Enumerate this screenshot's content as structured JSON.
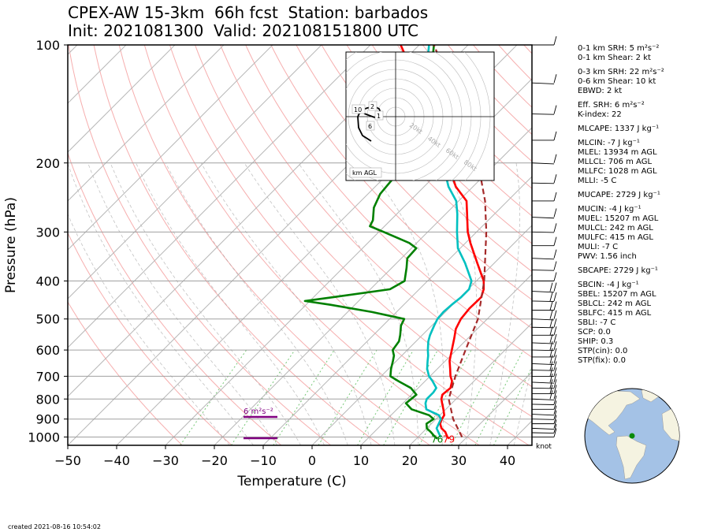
{
  "title": {
    "line1": "CPEX-AW 15-3km  66h fcst  Station: barbados",
    "line2": "Init: 2021081300  Valid: 202108151800 UTC"
  },
  "created": "created 2021-08-16 10:54:02",
  "stats": [
    "0-1 km SRH: 5 m²s⁻²",
    "0-1 km Shear: 2 kt",
    "0-3 km SRH: 22 m²s⁻²",
    "0-6 km Shear: 10 kt",
    "EBWD: 2 kt",
    "Eff. SRH: 6 m²s⁻²",
    "K-index: 22",
    "MLCAPE: 1337 J kg⁻¹",
    "MLCIN: -7 J kg⁻¹",
    "MLEL: 13934 m AGL",
    "MLLCL: 706 m AGL",
    "MLLFC: 1028 m AGL",
    "MLLI: -5 C",
    "MUCAPE: 2729 J kg⁻¹",
    "MUCIN: -4 J kg⁻¹",
    "MUEL: 15207 m AGL",
    "MULCL: 242 m AGL",
    "MULFC: 415 m AGL",
    "MULI: -7 C",
    "PWV: 1.56 inch",
    "SBCAPE: 2729 J kg⁻¹",
    "SBCIN: -4 J kg⁻¹",
    "SBEL: 15207 m AGL",
    "SBLCL: 242 m AGL",
    "SBLFC: 415 m AGL",
    "SBLI: -7 C",
    "SCP: 0.0",
    "SHIP: 0.3",
    "STP(cin): 0.0",
    "STP(fix): 0.0"
  ],
  "chart_data": {
    "type": "skew-t",
    "xlabel": "Temperature (C)",
    "ylabel": "Pressure (hPa)",
    "xlim": [
      -50,
      45
    ],
    "ylim": [
      1050,
      100
    ],
    "log_pressure_axis": true,
    "x_ticks": [
      "−50",
      "−40",
      "−30",
      "−20",
      "−10",
      "0",
      "10",
      "20",
      "30",
      "40"
    ],
    "y_ticks": [
      "100",
      "200",
      "300",
      "400",
      "500",
      "600",
      "700",
      "800",
      "900",
      "1000"
    ],
    "series": [
      {
        "name": "temperature",
        "color": "#ff0000",
        "points": [
          [
            1010,
            26.7
          ],
          [
            1000,
            26
          ],
          [
            970,
            24.5
          ],
          [
            950,
            23
          ],
          [
            925,
            21.8
          ],
          [
            900,
            21.2
          ],
          [
            880,
            20.9
          ],
          [
            850,
            19.5
          ],
          [
            820,
            18
          ],
          [
            800,
            17
          ],
          [
            780,
            16.3
          ],
          [
            750,
            16.6
          ],
          [
            720,
            15.5
          ],
          [
            700,
            14.2
          ],
          [
            670,
            12.6
          ],
          [
            640,
            10.9
          ],
          [
            620,
            10
          ],
          [
            600,
            9.1
          ],
          [
            560,
            7.2
          ],
          [
            530,
            5.6
          ],
          [
            500,
            4.6
          ],
          [
            470,
            4.2
          ],
          [
            440,
            4.3
          ],
          [
            420,
            3.2
          ],
          [
            400,
            1.5
          ],
          [
            360,
            -3.5
          ],
          [
            320,
            -9
          ],
          [
            300,
            -11.8
          ],
          [
            270,
            -15.6
          ],
          [
            250,
            -18.4
          ],
          [
            230,
            -23.5
          ],
          [
            200,
            -30
          ],
          [
            180,
            -35
          ],
          [
            160,
            -40.5
          ],
          [
            140,
            -47
          ],
          [
            120,
            -55
          ],
          [
            110,
            -59
          ],
          [
            100,
            -63.8
          ]
        ]
      },
      {
        "name": "dewpoint",
        "color": "#008000",
        "points": [
          [
            1010,
            24.3
          ],
          [
            1000,
            23.5
          ],
          [
            970,
            21.5
          ],
          [
            950,
            20
          ],
          [
            925,
            19
          ],
          [
            900,
            19.5
          ],
          [
            880,
            17.8
          ],
          [
            850,
            13
          ],
          [
            820,
            10.6
          ],
          [
            800,
            10.8
          ],
          [
            780,
            11
          ],
          [
            750,
            8.5
          ],
          [
            720,
            4.5
          ],
          [
            700,
            1.9
          ],
          [
            670,
            0.5
          ],
          [
            640,
            -0.7
          ],
          [
            620,
            -1.6
          ],
          [
            600,
            -3
          ],
          [
            570,
            -3.5
          ],
          [
            550,
            -4.5
          ],
          [
            520,
            -6.3
          ],
          [
            500,
            -7
          ],
          [
            480,
            -15
          ],
          [
            460,
            -25
          ],
          [
            450,
            -31
          ],
          [
            440,
            -26
          ],
          [
            420,
            -16
          ],
          [
            400,
            -14.7
          ],
          [
            370,
            -17
          ],
          [
            350,
            -18.8
          ],
          [
            330,
            -19
          ],
          [
            320,
            -21.5
          ],
          [
            300,
            -29
          ],
          [
            290,
            -33
          ],
          [
            280,
            -33.6
          ],
          [
            260,
            -36
          ],
          [
            240,
            -37.5
          ],
          [
            220,
            -38
          ],
          [
            200,
            -39
          ],
          [
            180,
            -45
          ],
          [
            160,
            -50
          ],
          [
            150,
            -50
          ],
          [
            140,
            -50
          ],
          [
            130,
            -51
          ],
          [
            120,
            -52
          ],
          [
            110,
            -54
          ],
          [
            100,
            -57
          ]
        ]
      },
      {
        "name": "wet-bulb temperature",
        "color": "#00c0c0",
        "points": [
          [
            1000,
            24.6
          ],
          [
            950,
            22
          ],
          [
            900,
            21
          ],
          [
            880,
            19.8
          ],
          [
            850,
            16
          ],
          [
            820,
            14.6
          ],
          [
            800,
            14
          ],
          [
            770,
            14
          ],
          [
            750,
            13.7
          ],
          [
            720,
            11.5
          ],
          [
            700,
            9.8
          ],
          [
            670,
            7.9
          ],
          [
            640,
            6.4
          ],
          [
            620,
            5.4
          ],
          [
            600,
            4.2
          ],
          [
            570,
            2.5
          ],
          [
            550,
            1.6
          ],
          [
            520,
            0.5
          ],
          [
            500,
            -0.2
          ],
          [
            480,
            -0.4
          ],
          [
            460,
            -0.2
          ],
          [
            440,
            0.2
          ],
          [
            420,
            0.2
          ],
          [
            400,
            -1
          ],
          [
            360,
            -6
          ],
          [
            330,
            -10.5
          ],
          [
            300,
            -14
          ],
          [
            270,
            -17.6
          ],
          [
            250,
            -20.5
          ],
          [
            230,
            -25
          ],
          [
            200,
            -31
          ],
          [
            180,
            -36
          ],
          [
            160,
            -41.5
          ],
          [
            140,
            -47.5
          ],
          [
            130,
            -50
          ],
          [
            120,
            -53
          ],
          [
            110,
            -55
          ],
          [
            100,
            -58
          ]
        ]
      },
      {
        "name": "parcel path",
        "color": "#a52a2a",
        "dashed": true,
        "points": [
          [
            1000,
            29
          ],
          [
            900,
            23.5
          ],
          [
            800,
            18.5
          ],
          [
            700,
            15.2
          ],
          [
            600,
            11.9
          ],
          [
            500,
            8.1
          ],
          [
            400,
            1.6
          ],
          [
            300,
            -8
          ],
          [
            250,
            -14.6
          ],
          [
            200,
            -23.8
          ],
          [
            150,
            -37
          ],
          [
            120,
            -48
          ],
          [
            100,
            -57
          ]
        ]
      }
    ],
    "surface_labels": {
      "dewpoint": "76",
      "temperature": "79"
    },
    "annotations": [
      {
        "text": "6 m²s⁻²",
        "color": "#800080"
      }
    ],
    "hodograph": {
      "rings": [
        "20kt",
        "40kt",
        "60kt",
        "80kt"
      ],
      "height_labels": [
        "10",
        "2",
        "1",
        "6"
      ],
      "legend": "km AGL"
    },
    "wind_barbs_unit": "knot",
    "colors": {
      "temperature": "#ff0000",
      "dewpoint": "#008000",
      "wetbulb": "#00c0c0",
      "parcel": "#a52a2a",
      "srh_annotation": "#800080",
      "dry_adiabats": "#f4a0a0",
      "moist_adiabats": "#9a9a9a",
      "mixing_ratio": "#78c878",
      "ocean": "#a4c2e6",
      "land": "#f5f3e1"
    }
  }
}
